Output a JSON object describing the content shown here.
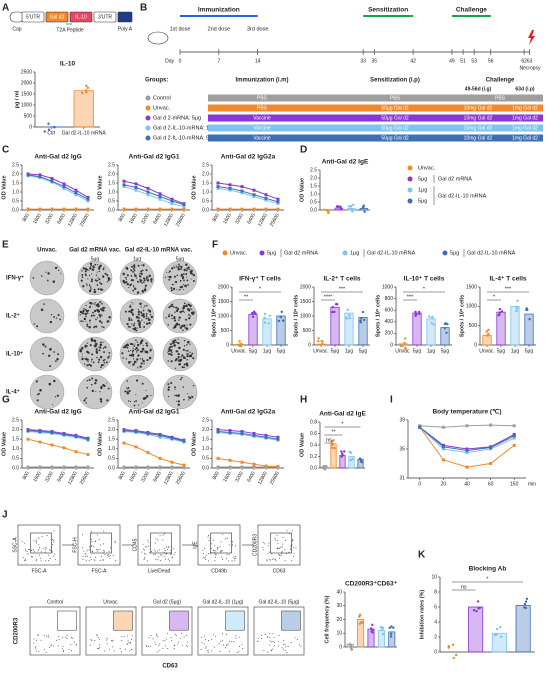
{
  "letters": [
    "A",
    "B",
    "C",
    "D",
    "E",
    "F",
    "G",
    "H",
    "I",
    "J",
    "K"
  ],
  "construct": {
    "parts": [
      "Cap",
      "5'UTR",
      "Gal d2",
      "IL-10",
      "3'UTR",
      "Poly A"
    ],
    "linker": "T2A Peptide"
  },
  "timeline": {
    "phases": [
      "Immunization",
      "Sensitization",
      "Challenge"
    ],
    "doses": [
      "1st dose",
      "2nd dose",
      "3rd dose"
    ],
    "days": [
      0,
      7,
      14,
      33,
      35,
      42,
      49,
      51,
      53,
      56,
      62,
      63
    ],
    "day_label": "Day",
    "end": "Necropsy"
  },
  "groups": {
    "headers": [
      "Groups:",
      "Immunization (i.m)",
      "Sensitization (i.p)",
      "Challenge"
    ],
    "subheaders": [
      "49-56d (i.g)",
      "63d (i.p)"
    ],
    "rows": [
      {
        "name": "Control",
        "color": "#9e9e9e",
        "cells": [
          "PBS",
          "PBS",
          "PBS"
        ]
      },
      {
        "name": "Unvac.",
        "color": "#f0892a",
        "cells": [
          "PBS",
          "50μg Gal d2",
          "10mg Gal d2",
          "1mg Gal d2"
        ]
      },
      {
        "name": "Gal d 2-mRNA: 5μg",
        "color": "#8b35d6",
        "cells": [
          "Vaccine",
          "50μg Gal d2",
          "10mg Gal d2",
          "1mg Gal d2"
        ]
      },
      {
        "name": "Gal d 2-IL-10-mRNA: 1μg",
        "color": "#7cc4ee",
        "cells": [
          "Vaccine",
          "50μg Gal d2",
          "10mg Gal d2",
          "1mg Gal d2"
        ]
      },
      {
        "name": "Gal d 2-IL-10-mRNA: 5μg",
        "color": "#3b6fb6",
        "cells": [
          "Vaccine",
          "50μg Gal d2",
          "10mg Gal d2",
          "1mg Gal d2"
        ]
      }
    ]
  },
  "legend_D": {
    "items": [
      {
        "dose": "Unvac.",
        "color": "#f0892a"
      },
      {
        "dose": "5μg",
        "color": "#8b35d6"
      },
      {
        "dose": "1μg",
        "color": "#7cc4ee"
      },
      {
        "dose": "5μg",
        "color": "#3b6fb6"
      }
    ],
    "groups": [
      "Gal d2 mRNA",
      "Gal d2-IL-10 mRNA"
    ]
  },
  "legend_F": [
    {
      "dose": "Unvac.",
      "color": "#f0892a"
    },
    {
      "dose": "5μg",
      "group": "Gal d2 mRNA",
      "color": "#8b35d6"
    },
    {
      "dose": "1μg",
      "group": "Gal d2-IL-10 mRNA",
      "color": "#7cc4ee"
    },
    {
      "dose": "5μg",
      "group": "Gal d2-IL-10 mRNA",
      "color": "#3b6fb6"
    }
  ],
  "images": {
    "columns": [
      "Unvac.",
      "Gal d2 mRNA vac.",
      "Gal d2-IL-10 mRNA vac."
    ],
    "doses": [
      "5μg",
      "1μg",
      "5μg"
    ],
    "rows": [
      "IFN-γ⁺",
      "IL-2⁺",
      "IL-10⁺",
      "IL-4⁺"
    ]
  },
  "flow": {
    "gating": [
      [
        "SSC-A",
        "FSC-A"
      ],
      [
        "FSC-H",
        "FSC-A"
      ],
      [
        "CD45",
        "Live/Dead"
      ],
      [
        "IgE",
        "CD49b"
      ],
      [
        "CD200R3",
        "CD63"
      ]
    ],
    "groups": [
      "Control",
      "Unvac.",
      "Gal d2 (5μg)",
      "Gal d2-IL-10 (1μg)",
      "Gal d2-IL-10 (5μg)"
    ],
    "y_axis": "CD200R3",
    "x_axis": "CD63"
  },
  "chart_data": [
    {
      "type": "bar",
      "title": "IL-10",
      "ylabel": "pg / ml",
      "categories": [
        "Ctrl",
        "Gal d2-IL-10 mRNA"
      ],
      "values": [
        5,
        1650
      ],
      "colors": [
        "#3b6fb6",
        "#f0892a"
      ],
      "ylim": [
        0,
        2500
      ],
      "yticks": [
        0,
        500,
        1000,
        1500,
        2000,
        2500
      ]
    },
    {
      "type": "line",
      "title": "Anti-Gal d2 IgG",
      "ylabel": "OD Value",
      "categories": [
        "800",
        "1600",
        "3200",
        "6400",
        "12800",
        "25600"
      ],
      "ylim": [
        0,
        2.5
      ],
      "yticks": [
        {
          "value": 0,
          "label": "0.0"
        },
        {
          "value": 0.5,
          "label": "0.5"
        },
        {
          "value": 1,
          "label": "1.0"
        },
        {
          "value": 1.5,
          "label": "1.5"
        },
        {
          "value": 2,
          "label": "2.0"
        },
        {
          "value": 2.5,
          "label": "2.5"
        }
      ],
      "series": [
        {
          "color": "#f0892a",
          "values": [
            0.05,
            0.05,
            0.05,
            0.05,
            0.05,
            0.05
          ]
        },
        {
          "color": "#8b35d6",
          "values": [
            2.0,
            1.95,
            1.75,
            1.45,
            1.1,
            0.7
          ]
        },
        {
          "color": "#7cc4ee",
          "values": [
            1.9,
            1.8,
            1.55,
            1.2,
            0.85,
            0.5
          ]
        },
        {
          "color": "#3b6fb6",
          "values": [
            1.95,
            1.85,
            1.6,
            1.3,
            0.95,
            0.6
          ]
        }
      ]
    },
    {
      "type": "line",
      "title": "Anti-Gal d2 IgG1",
      "ylabel": "OD Value",
      "categories": [
        "800",
        "1600",
        "3200",
        "6400",
        "12800",
        "25600"
      ],
      "ylim": [
        0,
        2.5
      ],
      "yticks": [
        {
          "value": 0,
          "label": "0.0"
        },
        {
          "value": 0.5,
          "label": "0.5"
        },
        {
          "value": 1,
          "label": "1.0"
        },
        {
          "value": 1.5,
          "label": "1.5"
        },
        {
          "value": 2,
          "label": "2.0"
        },
        {
          "value": 2.5,
          "label": "2.5"
        }
      ],
      "series": [
        {
          "color": "#f0892a",
          "values": [
            0.05,
            0.05,
            0.05,
            0.05,
            0.05,
            0.05
          ]
        },
        {
          "color": "#8b35d6",
          "values": [
            1.6,
            1.45,
            1.2,
            0.9,
            0.6,
            0.35
          ]
        },
        {
          "color": "#7cc4ee",
          "values": [
            1.3,
            1.1,
            0.85,
            0.6,
            0.35,
            0.2
          ]
        },
        {
          "color": "#3b6fb6",
          "values": [
            1.4,
            1.25,
            1.0,
            0.75,
            0.5,
            0.3
          ]
        }
      ]
    },
    {
      "type": "line",
      "title": "Anti-Gal d2 IgG2a",
      "ylabel": "OD Value",
      "categories": [
        "800",
        "1600",
        "3200",
        "6400",
        "12800",
        "25600"
      ],
      "ylim": [
        0,
        2.5
      ],
      "yticks": [
        {
          "value": 0,
          "label": "0.0"
        },
        {
          "value": 0.5,
          "label": "0.5"
        },
        {
          "value": 1,
          "label": "1.0"
        },
        {
          "value": 1.5,
          "label": "1.5"
        },
        {
          "value": 2,
          "label": "2.0"
        },
        {
          "value": 2.5,
          "label": "2.5"
        }
      ],
      "series": [
        {
          "color": "#f0892a",
          "values": [
            0.05,
            0.05,
            0.05,
            0.05,
            0.05,
            0.05
          ]
        },
        {
          "color": "#8b35d6",
          "values": [
            1.5,
            1.4,
            1.3,
            1.1,
            0.85,
            0.6
          ]
        },
        {
          "color": "#7cc4ee",
          "values": [
            1.2,
            1.1,
            0.95,
            0.75,
            0.55,
            0.35
          ]
        },
        {
          "color": "#3b6fb6",
          "values": [
            1.3,
            1.2,
            1.05,
            0.85,
            0.65,
            0.45
          ]
        }
      ]
    },
    {
      "type": "bar",
      "title": "Anti-Gal d2 IgE",
      "ylabel": "OD Value",
      "categories": [
        null,
        null,
        null,
        null
      ],
      "values": [
        0.02,
        0.12,
        0.1,
        0.1
      ],
      "colors": [
        "#f0892a",
        "#8b35d6",
        "#7cc4ee",
        "#3b6fb6"
      ],
      "ylim": [
        0,
        2.5
      ],
      "yticks": [
        {
          "value": 0,
          "label": "0.0"
        },
        {
          "value": 0.5,
          "label": "0.5"
        },
        {
          "value": 1,
          "label": "1.0"
        },
        {
          "value": 1.5,
          "label": "1.5"
        },
        {
          "value": 2,
          "label": "2.0"
        },
        {
          "value": 2.5,
          "label": "2.5"
        }
      ]
    },
    {
      "type": "bar",
      "title": "IFN-γ⁺ T cells",
      "ylabel": "Spots / 10⁶ cells",
      "categories": [
        "Unvac.",
        "5μg",
        "1μg",
        "5μg"
      ],
      "values": [
        20,
        1050,
        900,
        1000
      ],
      "colors": [
        "#f0892a",
        "#8b35d6",
        "#7cc4ee",
        "#3b6fb6"
      ],
      "ylim": [
        0,
        2000
      ],
      "yticks": [
        0,
        500,
        1000,
        1500,
        2000
      ],
      "annotations": [
        "**",
        "*"
      ]
    },
    {
      "type": "bar",
      "title": "IL-2⁺ T cells",
      "ylabel": "Spots / 10⁶ cells",
      "categories": [
        "Unvac.",
        "5μg",
        "1μg",
        "5μg"
      ],
      "values": [
        30,
        1300,
        1100,
        950
      ],
      "colors": [
        "#f0892a",
        "#8b35d6",
        "#7cc4ee",
        "#3b6fb6"
      ],
      "ylim": [
        0,
        2000
      ],
      "yticks": [
        0,
        500,
        1000,
        1500,
        2000
      ],
      "annotations": [
        "****",
        "***"
      ]
    },
    {
      "type": "bar",
      "title": "IL-10⁺ T cells",
      "ylabel": "Spots / 10⁶ cells",
      "categories": [
        "Unvac.",
        "5μg",
        "1μg",
        "5μg"
      ],
      "values": [
        20,
        550,
        450,
        300
      ],
      "colors": [
        "#f0892a",
        "#8b35d6",
        "#7cc4ee",
        "#3b6fb6"
      ],
      "ylim": [
        0,
        1000
      ],
      "yticks": [
        0,
        200,
        400,
        600,
        800,
        1000
      ],
      "annotations": [
        "***",
        "*"
      ]
    },
    {
      "type": "bar",
      "title": "IL-4⁺ T cells",
      "ylabel": "Spots / 10⁶ cells",
      "categories": [
        "Unvac.",
        "5μg",
        "1μg",
        "5μg"
      ],
      "values": [
        250,
        850,
        1000,
        800
      ],
      "colors": [
        "#f0892a",
        "#8b35d6",
        "#7cc4ee",
        "#3b6fb6"
      ],
      "ylim": [
        0,
        1500
      ],
      "yticks": [
        0,
        500,
        1000,
        1500
      ],
      "annotations": [
        "*",
        "***"
      ]
    },
    {
      "type": "line",
      "title": "Anti-Gal d2 IgG",
      "ylabel": "OD Value",
      "categories": [
        "800",
        "1600",
        "3200",
        "6400",
        "12800",
        "25600"
      ],
      "ylim": [
        0,
        2.5
      ],
      "yticks": [
        {
          "value": 0,
          "label": "0.0"
        },
        {
          "value": 0.5,
          "label": "0.5"
        },
        {
          "value": 1,
          "label": "1.0"
        },
        {
          "value": 1.5,
          "label": "1.5"
        },
        {
          "value": 2,
          "label": "2.0"
        },
        {
          "value": 2.5,
          "label": "2.5"
        }
      ],
      "series": [
        {
          "color": "#9e9e9e",
          "values": [
            0.05,
            0.05,
            0.05,
            0.05,
            0.05,
            0.05
          ]
        },
        {
          "color": "#f0892a",
          "values": [
            1.5,
            1.35,
            1.2,
            1.05,
            0.85,
            0.7
          ]
        },
        {
          "color": "#8b35d6",
          "values": [
            2.0,
            1.95,
            1.9,
            1.8,
            1.7,
            1.55
          ]
        },
        {
          "color": "#7cc4ee",
          "values": [
            1.9,
            1.85,
            1.8,
            1.7,
            1.6,
            1.45
          ]
        },
        {
          "color": "#3b6fb6",
          "values": [
            1.95,
            1.9,
            1.85,
            1.75,
            1.65,
            1.5
          ]
        }
      ]
    },
    {
      "type": "line",
      "title": "Anti-Gal d2 IgG1",
      "ylabel": "OD Value",
      "categories": [
        "800",
        "1600",
        "3200",
        "6400",
        "12800",
        "25600"
      ],
      "ylim": [
        0,
        2.5
      ],
      "yticks": [
        {
          "value": 0,
          "label": "0.0"
        },
        {
          "value": 0.5,
          "label": "0.5"
        },
        {
          "value": 1,
          "label": "1.0"
        },
        {
          "value": 1.5,
          "label": "1.5"
        },
        {
          "value": 2,
          "label": "2.0"
        },
        {
          "value": 2.5,
          "label": "2.5"
        }
      ],
      "series": [
        {
          "color": "#9e9e9e",
          "values": [
            0.05,
            0.05,
            0.05,
            0.05,
            0.05,
            0.05
          ]
        },
        {
          "color": "#f0892a",
          "values": [
            1.3,
            1.1,
            0.8,
            0.5,
            0.3,
            0.15
          ]
        },
        {
          "color": "#8b35d6",
          "values": [
            2.0,
            1.95,
            1.85,
            1.75,
            1.6,
            1.45
          ]
        },
        {
          "color": "#7cc4ee",
          "values": [
            1.9,
            1.85,
            1.75,
            1.6,
            1.5,
            1.35
          ]
        },
        {
          "color": "#3b6fb6",
          "values": [
            1.95,
            1.9,
            1.8,
            1.7,
            1.55,
            1.4
          ]
        }
      ]
    },
    {
      "type": "line",
      "title": "Anti-Gal d2 IgG2a",
      "ylabel": "OD Value",
      "categories": [
        "800",
        "1600",
        "3200",
        "6400",
        "12800",
        "25600"
      ],
      "ylim": [
        0,
        2.5
      ],
      "yticks": [
        {
          "value": 0,
          "label": "0.0"
        },
        {
          "value": 0.5,
          "label": "0.5"
        },
        {
          "value": 1,
          "label": "1.0"
        },
        {
          "value": 1.5,
          "label": "1.5"
        },
        {
          "value": 2,
          "label": "2.0"
        },
        {
          "value": 2.5,
          "label": "2.5"
        }
      ],
      "series": [
        {
          "color": "#9e9e9e",
          "values": [
            0.05,
            0.05,
            0.05,
            0.05,
            0.05,
            0.05
          ]
        },
        {
          "color": "#f0892a",
          "values": [
            0.5,
            0.4,
            0.3,
            0.2,
            0.1,
            0.08
          ]
        },
        {
          "color": "#8b35d6",
          "values": [
            2.0,
            1.95,
            1.9,
            1.8,
            1.7,
            1.6
          ]
        },
        {
          "color": "#7cc4ee",
          "values": [
            1.85,
            1.8,
            1.75,
            1.65,
            1.55,
            1.45
          ]
        },
        {
          "color": "#3b6fb6",
          "values": [
            1.9,
            1.85,
            1.8,
            1.7,
            1.6,
            1.5
          ]
        }
      ]
    },
    {
      "type": "bar",
      "title": "Anti-Gal d2 IgE",
      "ylabel": "OD Value",
      "categories": [
        null,
        null,
        null,
        null,
        null
      ],
      "values": [
        0.02,
        0.42,
        0.22,
        0.2,
        0.15
      ],
      "colors": [
        "#9e9e9e",
        "#f0892a",
        "#8b35d6",
        "#7cc4ee",
        "#3b6fb6"
      ],
      "ylim": [
        0,
        0.8
      ],
      "yticks": [
        {
          "value": 0,
          "label": "0.0"
        },
        {
          "value": 0.2,
          "label": "0.2"
        },
        {
          "value": 0.4,
          "label": "0.4"
        },
        {
          "value": 0.6,
          "label": "0.6"
        },
        {
          "value": 0.8,
          "label": "0.8"
        }
      ],
      "annotations": [
        "ns",
        "**",
        "*"
      ]
    },
    {
      "type": "line",
      "title": "Body temperature (℃)",
      "xlabel": "min",
      "categories": [
        "0",
        "20",
        "40",
        "60",
        "150"
      ],
      "ylim": [
        31,
        39
      ],
      "yticks": [
        31,
        35,
        39
      ],
      "series": [
        {
          "color": "#9e9e9e",
          "values": [
            38.2,
            38.0,
            38.2,
            38.3,
            38.2
          ]
        },
        {
          "color": "#f0892a",
          "values": [
            38.0,
            33.5,
            32.5,
            33.0,
            35.5
          ]
        },
        {
          "color": "#8b35d6",
          "values": [
            38.0,
            35.5,
            35.0,
            35.3,
            37.0
          ]
        },
        {
          "color": "#7cc4ee",
          "values": [
            38.0,
            35.0,
            34.5,
            35.0,
            36.5
          ]
        },
        {
          "color": "#3b6fb6",
          "values": [
            38.0,
            35.3,
            34.8,
            35.2,
            36.8
          ]
        }
      ]
    },
    {
      "type": "bar",
      "title": "CD200R3⁺CD63⁺",
      "ylabel": "Cell frequency (%)",
      "categories": [
        null,
        null,
        null,
        null,
        null
      ],
      "values": [
        2,
        20,
        13,
        12,
        11
      ],
      "colors": [
        "#9e9e9e",
        "#f0892a",
        "#8b35d6",
        "#7cc4ee",
        "#3b6fb6"
      ],
      "ylim": [
        0,
        40
      ],
      "yticks": [
        0,
        10,
        20,
        30,
        40
      ]
    },
    {
      "type": "bar",
      "title": "Blocking Ab",
      "ylabel": "Inhibition rates (%)",
      "categories": [
        null,
        null,
        null,
        null
      ],
      "values": [
        0,
        6.0,
        2.5,
        6.2
      ],
      "colors": [
        "#f0892a",
        "#8b35d6",
        "#7cc4ee",
        "#3b6fb6"
      ],
      "ylim": [
        0,
        10
      ],
      "yticks": [
        0,
        2,
        4,
        6,
        8,
        10
      ],
      "annotations": [
        "ns",
        "*"
      ]
    }
  ]
}
